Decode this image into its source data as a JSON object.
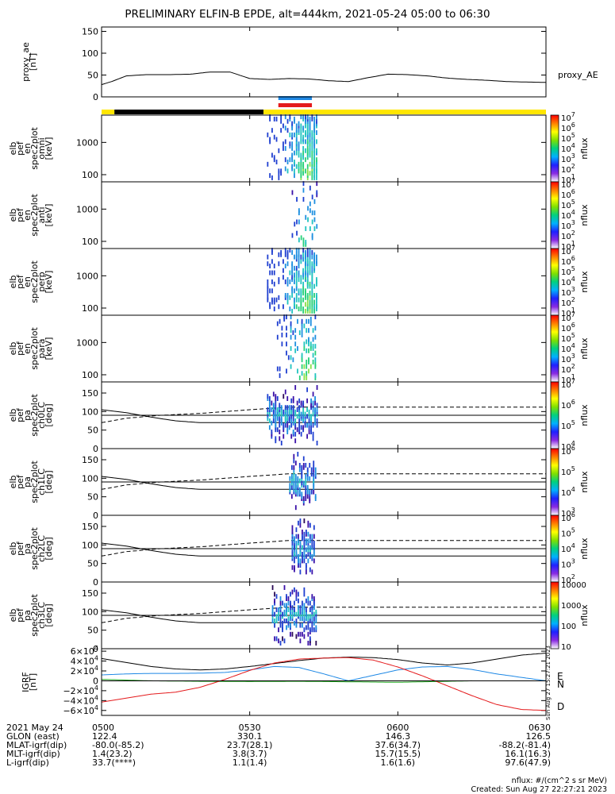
{
  "title": "PRELIMINARY ELFIN-B EPDE, alt=444km, 2021-05-24 05:00 to 06:30",
  "time_axis": {
    "range_min": [
      0,
      90
    ],
    "ticks": [
      {
        "t": 0,
        "label": "0500"
      },
      {
        "t": 30,
        "label": "0530"
      },
      {
        "t": 60,
        "label": "0600"
      },
      {
        "t": 90,
        "label": "0630"
      }
    ]
  },
  "colors": {
    "black": "#000000",
    "yellow": "#ffe600",
    "blue": "#1e88e5",
    "red": "#e41a1c",
    "green": "#22aa22"
  },
  "status_bars": {
    "main": [
      {
        "from": 0,
        "to": 2.6,
        "color": "yellow"
      },
      {
        "from": 2.6,
        "to": 32.8,
        "color": "black"
      },
      {
        "from": 32.8,
        "to": 90,
        "color": "yellow"
      }
    ],
    "markers": [
      {
        "from": 35.8,
        "to": 42.6,
        "color": "blue"
      },
      {
        "from": 35.8,
        "to": 42.6,
        "color": "red"
      }
    ]
  },
  "spec_colorbar_labels": [
    "10^7",
    "10^6",
    "10^5",
    "10^4",
    "10^3",
    "10^2",
    "10^1"
  ],
  "panels": [
    {
      "id": "proxy_ae",
      "ylabel": [
        "proxy_ae",
        "[nT]"
      ],
      "side_label": "proxy_AE",
      "scale": "linear",
      "ymin": 0,
      "ymax": 160,
      "ticks": [
        {
          "v": 0,
          "label": "0"
        },
        {
          "v": 50,
          "label": "50"
        },
        {
          "v": 100,
          "label": "100"
        },
        {
          "v": 150,
          "label": "150"
        }
      ]
    },
    {
      "id": "omni",
      "ylabel": [
        "elb",
        "pef",
        "en",
        "spec2plot",
        "omni",
        "[keV]"
      ],
      "scale": "log",
      "ymin": 60,
      "ymax": 7000,
      "ticks": [
        {
          "v": 100,
          "label": "100"
        },
        {
          "v": 1000,
          "label": "1000"
        }
      ],
      "colorbar": {
        "title": "nflux",
        "labels": [
          "10^7",
          "10^6",
          "10^5",
          "10^4",
          "10^3",
          "10^2",
          "10^1"
        ]
      }
    },
    {
      "id": "anti",
      "ylabel": [
        "elb",
        "pef",
        "en",
        "spec2plot",
        "anti",
        "[keV]"
      ],
      "scale": "log",
      "ymin": 60,
      "ymax": 7000,
      "ticks": [
        {
          "v": 100,
          "label": "100"
        },
        {
          "v": 1000,
          "label": "1000"
        }
      ],
      "colorbar": {
        "title": "nflux",
        "labels": [
          "10^7",
          "10^6",
          "10^5",
          "10^4",
          "10^3",
          "10^2",
          "10^1"
        ]
      }
    },
    {
      "id": "perp",
      "ylabel": [
        "elb",
        "pef",
        "en",
        "spec2plot",
        "perp",
        "[keV]"
      ],
      "scale": "log",
      "ymin": 60,
      "ymax": 7000,
      "ticks": [
        {
          "v": 100,
          "label": "100"
        },
        {
          "v": 1000,
          "label": "1000"
        }
      ],
      "colorbar": {
        "title": "nflux",
        "labels": [
          "10^7",
          "10^6",
          "10^5",
          "10^4",
          "10^3",
          "10^2",
          "10^1"
        ]
      }
    },
    {
      "id": "para",
      "ylabel": [
        "elb",
        "pef",
        "en",
        "spec2plot",
        "para",
        "[keV]"
      ],
      "scale": "log",
      "ymin": 60,
      "ymax": 7000,
      "ticks": [
        {
          "v": 100,
          "label": "100"
        },
        {
          "v": 1000,
          "label": "1000"
        }
      ],
      "colorbar": {
        "title": "nflux",
        "labels": [
          "10^7",
          "10^6",
          "10^5",
          "10^4",
          "10^3",
          "10^2",
          "10^1"
        ]
      }
    },
    {
      "id": "ch0",
      "ylabel": [
        "elb",
        "pef",
        "pa",
        "spec2plot",
        "ch0LC",
        "[deg]"
      ],
      "scale": "linear",
      "ymin": 0,
      "ymax": 180,
      "ticks": [
        {
          "v": 0,
          "label": "0"
        },
        {
          "v": 50,
          "label": "50"
        },
        {
          "v": 100,
          "label": "100"
        },
        {
          "v": 150,
          "label": "150"
        }
      ],
      "colorbar": {
        "title": "nflux",
        "labels": [
          "10^7",
          "10^6",
          "10^5",
          "10^4"
        ]
      }
    },
    {
      "id": "ch1",
      "ylabel": [
        "elb",
        "pef",
        "pa",
        "spec2plot",
        "ch1LC",
        "[deg]"
      ],
      "scale": "linear",
      "ymin": 0,
      "ymax": 180,
      "ticks": [
        {
          "v": 0,
          "label": "0"
        },
        {
          "v": 50,
          "label": "50"
        },
        {
          "v": 100,
          "label": "100"
        },
        {
          "v": 150,
          "label": "150"
        }
      ],
      "colorbar": {
        "title": "nflux",
        "labels": [
          "10^6",
          "10^5",
          "10^4",
          "10^3"
        ]
      }
    },
    {
      "id": "ch2",
      "ylabel": [
        "elb",
        "pef",
        "pa",
        "spec2plot",
        "ch2LC",
        "[deg]"
      ],
      "scale": "linear",
      "ymin": 0,
      "ymax": 180,
      "ticks": [
        {
          "v": 0,
          "label": "0"
        },
        {
          "v": 50,
          "label": "50"
        },
        {
          "v": 100,
          "label": "100"
        },
        {
          "v": 150,
          "label": "150"
        }
      ],
      "colorbar": {
        "title": "nflux",
        "labels": [
          "10^6",
          "10^5",
          "10^4",
          "10^3",
          "10^2"
        ]
      }
    },
    {
      "id": "ch3",
      "ylabel": [
        "elb",
        "pef",
        "pa",
        "spec2plot",
        "ch3LC",
        "[deg]"
      ],
      "scale": "linear",
      "ymin": 0,
      "ymax": 180,
      "ticks": [
        {
          "v": 0,
          "label": "0"
        },
        {
          "v": 50,
          "label": "50"
        },
        {
          "v": 100,
          "label": "100"
        },
        {
          "v": 150,
          "label": "150"
        }
      ],
      "colorbar": {
        "title": "nflux",
        "labels": [
          "10000",
          "1000",
          "100",
          "10"
        ]
      }
    },
    {
      "id": "igrf",
      "ylabel": [
        "IGRF",
        "[nT]"
      ],
      "scale": "linear",
      "ymin": -70000,
      "ymax": 65000,
      "ticks": [
        {
          "v": 60000,
          "label": "6×10^4"
        },
        {
          "v": 40000,
          "label": "4×10^4"
        },
        {
          "v": 20000,
          "label": "2×10^4"
        },
        {
          "v": 0,
          "label": "0"
        },
        {
          "v": -20000,
          "label": "−2×10^4"
        },
        {
          "v": -40000,
          "label": "−4×10^4"
        },
        {
          "v": -60000,
          "label": "−6×10^4"
        }
      ],
      "component_labels": [
        {
          "label": "E",
          "color": "green"
        },
        {
          "label": "N",
          "color": "blue"
        },
        {
          "label": "D",
          "color": "red"
        }
      ]
    }
  ],
  "chart_data": [
    {
      "type": "line",
      "panel": "proxy_ae",
      "ylim": [
        0,
        160
      ],
      "series": [
        {
          "name": "proxy_AE",
          "x": [
            0,
            2,
            5,
            9,
            14,
            18,
            22,
            26,
            30,
            34,
            38,
            42,
            46,
            50,
            54,
            58,
            62,
            66,
            70,
            74,
            78,
            82,
            86,
            90
          ],
          "y": [
            28,
            35,
            48,
            51,
            51,
            52,
            57,
            57,
            42,
            40,
            42,
            41,
            37,
            35,
            44,
            52,
            51,
            48,
            43,
            40,
            38,
            35,
            34,
            33
          ]
        }
      ]
    },
    {
      "type": "heatmap",
      "panel": "omni",
      "x_range": [
        33.5,
        43.5
      ],
      "y_range_keV": [
        80,
        7000
      ]
    },
    {
      "type": "heatmap",
      "panel": "anti",
      "x_range": [
        38.5,
        43.5
      ],
      "y_range_keV": [
        80,
        7000
      ]
    },
    {
      "type": "heatmap",
      "panel": "perp",
      "x_range": [
        33.5,
        43.5
      ],
      "y_range_keV": [
        80,
        7000
      ]
    },
    {
      "type": "heatmap",
      "panel": "para",
      "x_range": [
        35.5,
        43.5
      ],
      "y_range_keV": [
        80,
        7000
      ]
    },
    {
      "type": "line",
      "panel": "ch0",
      "ylim": [
        0,
        180
      ],
      "series": [
        {
          "style": "solid",
          "x": [
            0,
            5,
            10,
            15,
            20,
            30,
            42,
            90
          ],
          "y": [
            105,
            97,
            85,
            75,
            70,
            70,
            70,
            70
          ]
        },
        {
          "style": "solid",
          "x": [
            0,
            90
          ],
          "y": [
            90,
            90
          ]
        },
        {
          "style": "dashed",
          "x": [
            0,
            5,
            12,
            20,
            30,
            38,
            42,
            90
          ],
          "y": [
            70,
            82,
            90,
            95,
            105,
            112,
            112,
            112
          ]
        }
      ]
    },
    {
      "type": "line",
      "panel": "ch1",
      "ylim": [
        0,
        180
      ],
      "series": [
        {
          "style": "solid",
          "x": [
            0,
            5,
            10,
            15,
            20,
            30,
            42,
            90
          ],
          "y": [
            105,
            97,
            85,
            75,
            70,
            70,
            70,
            70
          ]
        },
        {
          "style": "solid",
          "x": [
            0,
            90
          ],
          "y": [
            90,
            90
          ]
        },
        {
          "style": "dashed",
          "x": [
            0,
            5,
            12,
            20,
            30,
            38,
            42,
            90
          ],
          "y": [
            70,
            82,
            90,
            95,
            105,
            112,
            112,
            112
          ]
        }
      ]
    },
    {
      "type": "line",
      "panel": "ch2",
      "ylim": [
        0,
        180
      ],
      "series": [
        {
          "style": "solid",
          "x": [
            0,
            5,
            10,
            15,
            20,
            30,
            42,
            90
          ],
          "y": [
            105,
            97,
            85,
            75,
            70,
            70,
            70,
            70
          ]
        },
        {
          "style": "solid",
          "x": [
            0,
            90
          ],
          "y": [
            90,
            90
          ]
        },
        {
          "style": "dashed",
          "x": [
            0,
            5,
            12,
            20,
            30,
            38,
            42,
            90
          ],
          "y": [
            70,
            82,
            90,
            95,
            105,
            112,
            112,
            112
          ]
        }
      ]
    },
    {
      "type": "line",
      "panel": "ch3",
      "ylim": [
        0,
        180
      ],
      "series": [
        {
          "style": "solid",
          "x": [
            0,
            5,
            10,
            15,
            20,
            30,
            42,
            90
          ],
          "y": [
            105,
            97,
            85,
            75,
            70,
            70,
            70,
            70
          ]
        },
        {
          "style": "solid",
          "x": [
            0,
            90
          ],
          "y": [
            90,
            90
          ]
        },
        {
          "style": "dashed",
          "x": [
            0,
            5,
            12,
            20,
            30,
            38,
            42,
            90
          ],
          "y": [
            70,
            82,
            90,
            95,
            105,
            112,
            112,
            112
          ]
        }
      ]
    },
    {
      "type": "line",
      "panel": "igrf",
      "ylim": [
        -70000,
        65000
      ],
      "series": [
        {
          "name": "total",
          "color": "black",
          "x": [
            0,
            5,
            10,
            15,
            20,
            25,
            30,
            35,
            40,
            45,
            50,
            55,
            60,
            65,
            70,
            75,
            80,
            85,
            90
          ],
          "y": [
            45000,
            37000,
            29000,
            24000,
            22000,
            24000,
            29000,
            35000,
            41000,
            46000,
            48000,
            47000,
            43000,
            36000,
            32000,
            36000,
            44000,
            52000,
            56000
          ]
        },
        {
          "name": "N",
          "color": "blue",
          "x": [
            0,
            5,
            10,
            15,
            20,
            25,
            30,
            35,
            40,
            45,
            50,
            55,
            60,
            65,
            70,
            75,
            80,
            85,
            90
          ],
          "y": [
            12000,
            14000,
            15000,
            15000,
            15500,
            17000,
            22000,
            29000,
            27000,
            14000,
            0,
            11000,
            22000,
            28000,
            29000,
            23000,
            14000,
            7000,
            0
          ]
        },
        {
          "name": "E",
          "color": "green",
          "x": [
            0,
            10,
            20,
            30,
            40,
            50,
            60,
            70,
            75
          ],
          "y": [
            3000,
            0,
            -1000,
            -1500,
            -1000,
            -2000,
            -3000,
            -1000,
            0
          ]
        },
        {
          "name": "D",
          "color": "red",
          "x": [
            0,
            5,
            10,
            15,
            20,
            25,
            30,
            35,
            40,
            45,
            50,
            55,
            60,
            65,
            70,
            75,
            80,
            85,
            90
          ],
          "y": [
            -43000,
            -35000,
            -27000,
            -23000,
            -13000,
            3000,
            21000,
            36000,
            44000,
            46000,
            47000,
            42000,
            28000,
            10000,
            -10000,
            -30000,
            -48000,
            -58000,
            -60000
          ]
        }
      ]
    }
  ],
  "ephemeris": {
    "rows": [
      {
        "label": "2021 May 24",
        "values": [
          "0500",
          "0530",
          "0600",
          "0630"
        ]
      },
      {
        "label": "GLON (east)",
        "values": [
          "122.4",
          "330.1",
          "146.3",
          "126.5"
        ]
      },
      {
        "label": "MLAT-igrf(dip)",
        "values": [
          "-80.0(-85.2)",
          "23.7(28.1)",
          "37.6(34.7)",
          "-88.2(-81.4)"
        ]
      },
      {
        "label": "MLT-igrf(dip)",
        "values": [
          "1.4(23.2)",
          "3.8(3.7)",
          "15.7(15.5)",
          "16.1(16.3)"
        ]
      },
      {
        "label": "L-igrf(dip)",
        "values": [
          "33.7(****)",
          "1.1(1.4)",
          "1.6(1.6)",
          "97.6(47.9)"
        ]
      }
    ]
  },
  "footer": {
    "units": "nflux: #/(cm^2 s sr MeV)",
    "created": "Created: Sun Aug 27 22:27:21 2023",
    "side_stamp": "Sun Aug 27 15:27:21 2023"
  }
}
